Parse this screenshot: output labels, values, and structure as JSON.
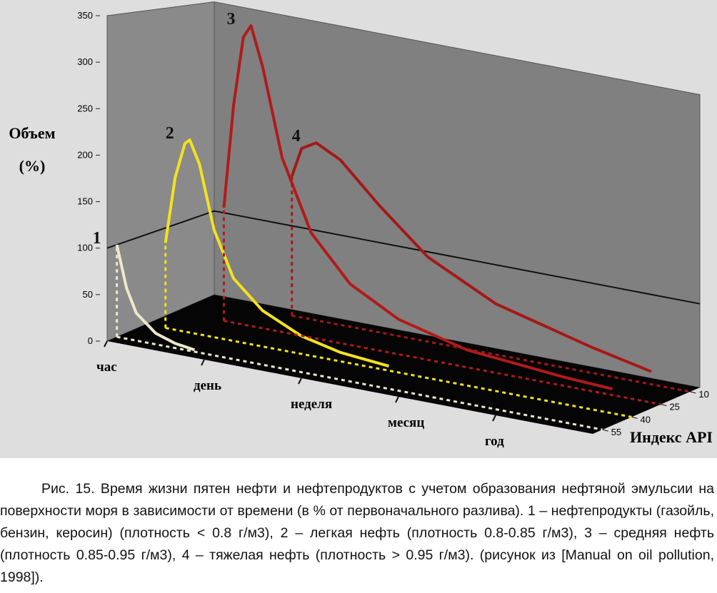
{
  "chart_data": {
    "type": "line3d",
    "ylabel": [
      "Объем",
      "(%)"
    ],
    "zlabel": "Индекс API",
    "ylim": [
      0,
      350
    ],
    "yticks": [
      0,
      50,
      100,
      150,
      200,
      250,
      300,
      350
    ],
    "xlim": [
      0,
      5
    ],
    "xticks": [
      {
        "value": 0,
        "label": "час"
      },
      {
        "value": 1,
        "label": "день"
      },
      {
        "value": 2,
        "label": "неделя"
      },
      {
        "value": 3,
        "label": "месяц"
      },
      {
        "value": 4,
        "label": "год"
      }
    ],
    "zlim": [
      60,
      5
    ],
    "zticks": [
      10,
      25,
      40,
      55
    ],
    "reference_line": 100,
    "series": [
      {
        "name": "1",
        "color": "#ece8cc",
        "z": 55,
        "x": [
          0,
          0.1,
          0.2,
          0.4,
          0.6,
          0.8
        ],
        "values": [
          100,
          55,
          30,
          12,
          5,
          2
        ]
      },
      {
        "name": "2",
        "color": "#f2e21e",
        "z": 40,
        "x": [
          0.2,
          0.3,
          0.4,
          0.45,
          0.55,
          0.7,
          0.9,
          1.2,
          1.6,
          2.0,
          2.5
        ],
        "values": [
          95,
          170,
          210,
          215,
          190,
          120,
          70,
          40,
          20,
          10,
          5
        ]
      },
      {
        "name": "3",
        "color": "#b21a1a",
        "z": 25,
        "x": [
          0.5,
          0.6,
          0.7,
          0.78,
          0.9,
          1.1,
          1.4,
          1.8,
          2.3,
          3,
          4,
          4.5
        ],
        "values": [
          130,
          250,
          330,
          345,
          300,
          200,
          120,
          70,
          40,
          20,
          10,
          7
        ]
      },
      {
        "name": "4",
        "color": "#a51818",
        "z": 10,
        "x": [
          0.9,
          1.0,
          1.15,
          1.4,
          1.8,
          2.3,
          3,
          4,
          4.6
        ],
        "values": [
          165,
          200,
          210,
          195,
          150,
          100,
          60,
          30,
          15
        ]
      }
    ]
  },
  "caption": "Рис. 15. Время жизни пятен нефти и нефтепродуктов с учетом образования нефтяной эмульсии на поверхности моря в зависимости от времени (в % от первоначального разлива). 1 – нефтепродукты (газойль, бензин, керосин) (плотность < 0.8 г/м3), 2 – легкая нефть (плотность 0.8-0.85 г/м3), 3 – средняя нефть (плотность 0.85-0.95 г/м3), 4 – тяжелая нефть (плотность > 0.95 г/м3). (рисунок из [Manual on oil pollution, 1998])."
}
